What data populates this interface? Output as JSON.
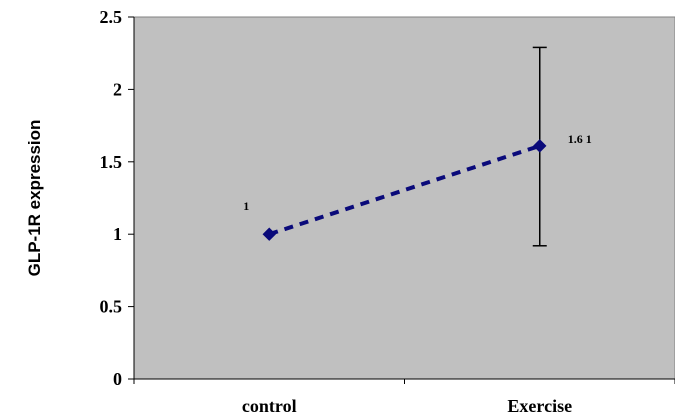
{
  "chart_data": {
    "type": "line",
    "categories": [
      "control",
      "Exercise"
    ],
    "series": [
      {
        "values": [
          1,
          1.61
        ],
        "error_upper": [
          null,
          2.29
        ],
        "error_lower": [
          null,
          0.92
        ],
        "data_labels": [
          "1",
          "1.6 1"
        ],
        "color": "#0a0a7a",
        "line_style": "dashed",
        "marker": "diamond"
      }
    ],
    "ylabel": "GLP-1R expression",
    "xlabel": "",
    "title": "",
    "ylim": [
      0,
      2.5
    ],
    "yticks": [
      "0",
      "0.5",
      "1",
      "1.5",
      "2",
      "2.5"
    ],
    "grid": false,
    "plot_background": "#c0c0c0",
    "legend": "none"
  }
}
